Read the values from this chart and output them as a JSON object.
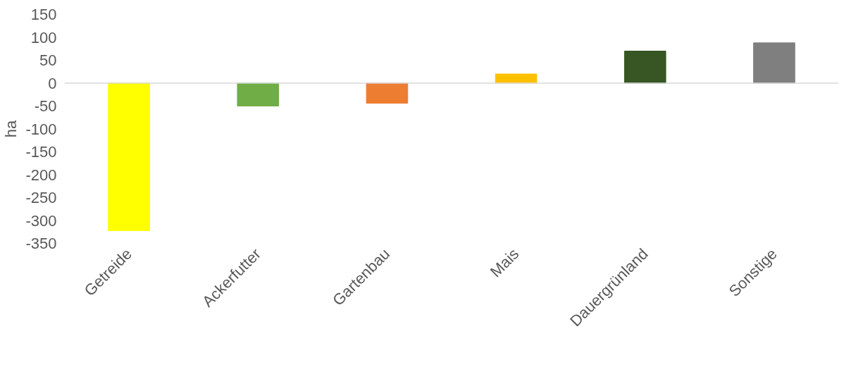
{
  "chart_data": {
    "type": "bar",
    "ylabel": "ha",
    "categories": [
      "Getreide",
      "Ackerfutter",
      "Gartenbau",
      "Mais",
      "Dauergrünland",
      "Sonstige"
    ],
    "values": [
      -322,
      -50,
      -44,
      20,
      70,
      88
    ],
    "colors": [
      "#ffff00",
      "#70ad47",
      "#ed7d31",
      "#ffc000",
      "#375623",
      "#7f7f7f"
    ],
    "ylim": [
      -350,
      150
    ],
    "yticks": [
      -350,
      -300,
      -250,
      -200,
      -150,
      -100,
      -50,
      0,
      50,
      100,
      150
    ]
  }
}
